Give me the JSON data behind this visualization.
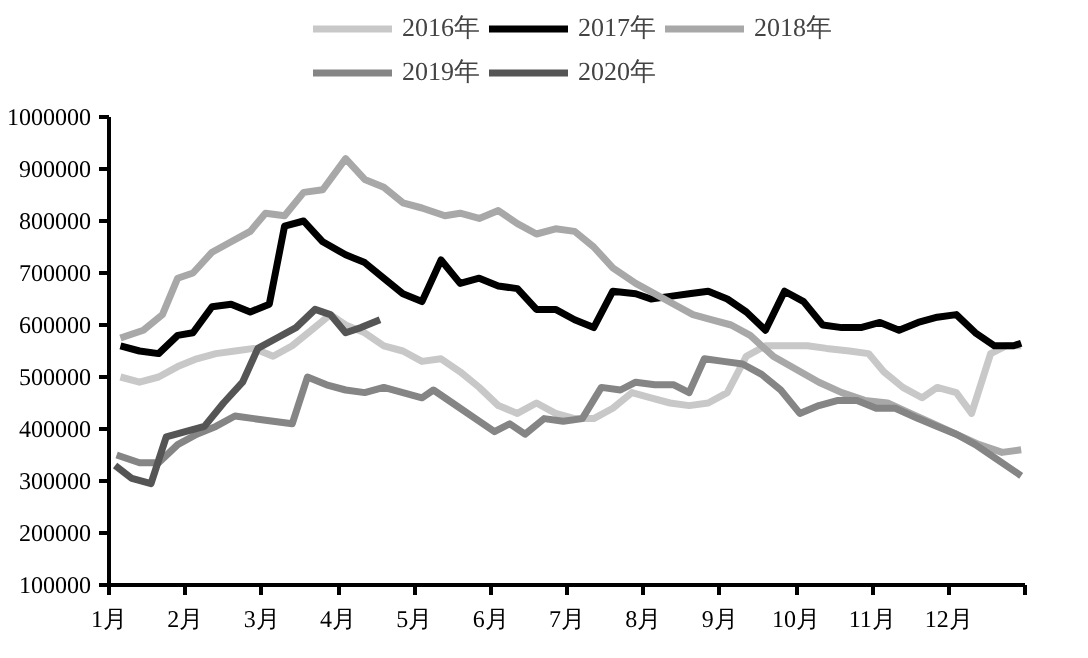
{
  "chart_data": {
    "type": "line",
    "legend": "top",
    "grid": false,
    "line_style": "solid",
    "marker": "none",
    "xlim": [
      1,
      13
    ],
    "xticks": [
      {
        "value": 1,
        "label": "1月"
      },
      {
        "value": 2,
        "label": "2月"
      },
      {
        "value": 3,
        "label": "3月"
      },
      {
        "value": 4,
        "label": "4月"
      },
      {
        "value": 5,
        "label": "5月"
      },
      {
        "value": 6,
        "label": "6月"
      },
      {
        "value": 7,
        "label": "7月"
      },
      {
        "value": 8,
        "label": "8月"
      },
      {
        "value": 9,
        "label": "9月"
      },
      {
        "value": 10,
        "label": "10月"
      },
      {
        "value": 11,
        "label": "11月"
      },
      {
        "value": 12,
        "label": "12月"
      },
      {
        "value": 13,
        "label": null
      }
    ],
    "ylim": [
      100000,
      1000000
    ],
    "yticks": [
      100000,
      200000,
      300000,
      400000,
      500000,
      600000,
      700000,
      800000,
      900000,
      1000000
    ],
    "series": [
      {
        "name": "2016年",
        "color": "#c8c8c8",
        "x": [
          1.15,
          1.4,
          1.65,
          1.9,
          2.15,
          2.4,
          2.65,
          2.9,
          3.15,
          3.4,
          3.65,
          3.9,
          4.1,
          4.35,
          4.6,
          4.85,
          5.1,
          5.35,
          5.6,
          5.85,
          6.1,
          6.35,
          6.6,
          6.85,
          7.1,
          7.35,
          7.6,
          7.85,
          8.1,
          8.35,
          8.6,
          8.85,
          9.1,
          9.35,
          9.6,
          9.9,
          10.15,
          10.4,
          10.7,
          10.95,
          11.15,
          11.4,
          11.65,
          11.85,
          12.1,
          12.3,
          12.55,
          12.75,
          12.95
        ],
        "values": [
          500000,
          490000,
          500000,
          520000,
          535000,
          545000,
          550000,
          555000,
          540000,
          560000,
          590000,
          620000,
          600000,
          585000,
          560000,
          550000,
          530000,
          535000,
          510000,
          480000,
          445000,
          430000,
          450000,
          430000,
          420000,
          420000,
          440000,
          470000,
          460000,
          450000,
          445000,
          450000,
          470000,
          540000,
          560000,
          560000,
          560000,
          555000,
          550000,
          545000,
          510000,
          480000,
          460000,
          480000,
          470000,
          430000,
          545000,
          560000,
          560000
        ]
      },
      {
        "name": "2017年",
        "color": "#000000",
        "x": [
          1.15,
          1.4,
          1.65,
          1.9,
          2.1,
          2.35,
          2.6,
          2.85,
          3.1,
          3.3,
          3.55,
          3.8,
          4.1,
          4.35,
          4.6,
          4.85,
          5.1,
          5.35,
          5.6,
          5.85,
          6.1,
          6.35,
          6.6,
          6.85,
          7.1,
          7.35,
          7.6,
          7.9,
          8.1,
          8.35,
          8.6,
          8.85,
          9.1,
          9.35,
          9.6,
          9.85,
          10.1,
          10.35,
          10.6,
          10.85,
          11.1,
          11.35,
          11.6,
          11.85,
          12.1,
          12.35,
          12.6,
          12.85,
          12.95
        ],
        "values": [
          560000,
          550000,
          545000,
          580000,
          585000,
          635000,
          640000,
          625000,
          640000,
          790000,
          800000,
          760000,
          735000,
          720000,
          690000,
          660000,
          645000,
          725000,
          680000,
          690000,
          675000,
          670000,
          630000,
          630000,
          610000,
          595000,
          665000,
          660000,
          650000,
          655000,
          660000,
          665000,
          650000,
          625000,
          590000,
          665000,
          645000,
          600000,
          595000,
          595000,
          605000,
          590000,
          605000,
          615000,
          620000,
          585000,
          560000,
          560000,
          565000
        ]
      },
      {
        "name": "2018年",
        "color": "#a8a8a8",
        "x": [
          1.15,
          1.45,
          1.7,
          1.9,
          2.1,
          2.35,
          2.6,
          2.85,
          3.05,
          3.3,
          3.55,
          3.8,
          4.1,
          4.35,
          4.6,
          4.85,
          5.1,
          5.4,
          5.6,
          5.85,
          6.1,
          6.35,
          6.6,
          6.85,
          7.1,
          7.35,
          7.6,
          7.9,
          8.15,
          8.4,
          8.65,
          8.9,
          9.15,
          9.4,
          9.7,
          10.0,
          10.3,
          10.6,
          10.9,
          11.2,
          11.5,
          11.8,
          12.1,
          12.4,
          12.7,
          12.95
        ],
        "values": [
          575000,
          590000,
          620000,
          690000,
          700000,
          740000,
          760000,
          780000,
          815000,
          810000,
          855000,
          860000,
          920000,
          880000,
          865000,
          835000,
          825000,
          810000,
          815000,
          805000,
          820000,
          795000,
          775000,
          785000,
          780000,
          750000,
          710000,
          680000,
          660000,
          640000,
          620000,
          610000,
          600000,
          580000,
          540000,
          515000,
          490000,
          470000,
          455000,
          450000,
          430000,
          410000,
          390000,
          370000,
          355000,
          360000
        ]
      },
      {
        "name": "2019年",
        "color": "#858585",
        "x": [
          1.1,
          1.4,
          1.65,
          1.9,
          2.15,
          2.4,
          2.65,
          2.9,
          3.15,
          3.4,
          3.6,
          3.85,
          4.1,
          4.35,
          4.6,
          4.85,
          5.1,
          5.25,
          5.5,
          5.8,
          6.05,
          6.25,
          6.45,
          6.7,
          6.95,
          7.2,
          7.45,
          7.7,
          7.9,
          8.15,
          8.4,
          8.6,
          8.8,
          9.05,
          9.3,
          9.55,
          9.8,
          10.05,
          10.3,
          10.55,
          10.8,
          11.05,
          11.3,
          11.6,
          11.85,
          12.1,
          12.35,
          12.6,
          12.95
        ],
        "values": [
          350000,
          335000,
          335000,
          370000,
          390000,
          405000,
          425000,
          420000,
          415000,
          410000,
          500000,
          485000,
          475000,
          470000,
          480000,
          470000,
          460000,
          475000,
          450000,
          420000,
          395000,
          410000,
          390000,
          420000,
          415000,
          420000,
          480000,
          475000,
          490000,
          485000,
          485000,
          470000,
          535000,
          530000,
          525000,
          505000,
          475000,
          430000,
          445000,
          455000,
          455000,
          440000,
          440000,
          420000,
          405000,
          390000,
          370000,
          345000,
          310000
        ]
      },
      {
        "name": "2020年",
        "color": "#555555",
        "x": [
          1.08,
          1.3,
          1.55,
          1.75,
          2.0,
          2.25,
          2.5,
          2.75,
          2.95,
          3.2,
          3.45,
          3.7,
          3.9,
          4.1,
          4.3,
          4.55
        ],
        "values": [
          330000,
          305000,
          295000,
          385000,
          395000,
          405000,
          450000,
          490000,
          555000,
          575000,
          595000,
          630000,
          620000,
          585000,
          595000,
          610000
        ]
      }
    ]
  }
}
